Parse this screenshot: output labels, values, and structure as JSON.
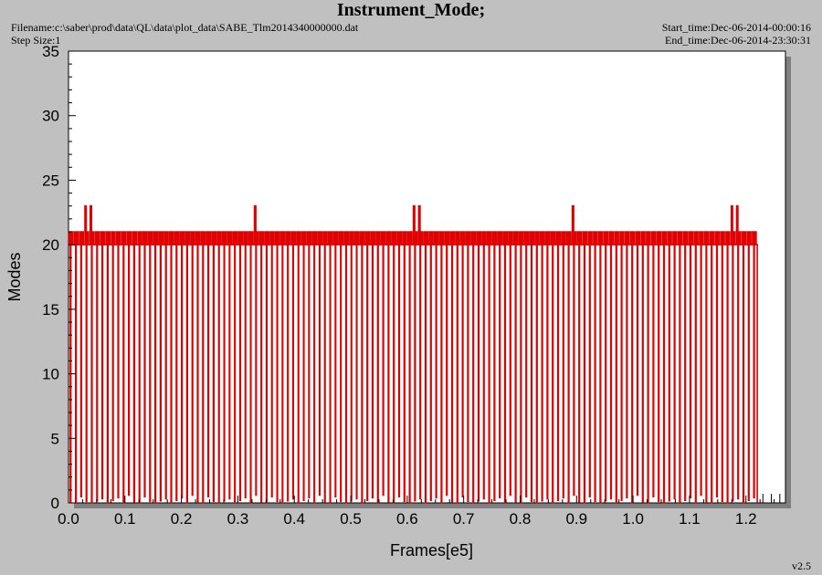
{
  "header": {
    "title": "Instrument_Mode;",
    "filename": "Filename:c:\\saber\\prod\\data\\QL\\data\\plot_data\\SABE_Tlm2014340000000.dat",
    "step_size": "Step Size:1",
    "start_time": "Start_time:Dec-06-2014-00:00:16",
    "end_time": "End_time:Dec-06-2014-23:30:31"
  },
  "footer": {
    "version": "v2.5"
  },
  "colors": {
    "series": "#e00000",
    "background": "#c0c0c0",
    "plot_bg": "#ffffff",
    "shadow": "#808080"
  },
  "chart_data": {
    "type": "line",
    "xlabel": "Frames[e5]",
    "ylabel": "Modes",
    "xlim": [
      0.0,
      1.27
    ],
    "ylim": [
      0,
      35
    ],
    "xticks": [
      "0.0",
      "0.1",
      "0.2",
      "0.3",
      "0.4",
      "0.5",
      "0.6",
      "0.7",
      "0.8",
      "0.9",
      "1.0",
      "1.1",
      "1.2"
    ],
    "yticks": [
      "0",
      "5",
      "10",
      "15",
      "20",
      "25",
      "30",
      "35"
    ],
    "grid": false,
    "series": [
      {
        "base_level": 20,
        "high_level": 21,
        "low_level": 0,
        "x_start": 0.0,
        "x_end": 1.22,
        "approx_cycle_count": 130,
        "spike_level": 23,
        "spike_x": [
          0.033,
          0.328,
          0.612,
          0.891,
          1.176
        ],
        "final_level": 0,
        "trailing_zero_points_x": [
          1.23,
          1.245,
          1.26
        ]
      }
    ]
  }
}
